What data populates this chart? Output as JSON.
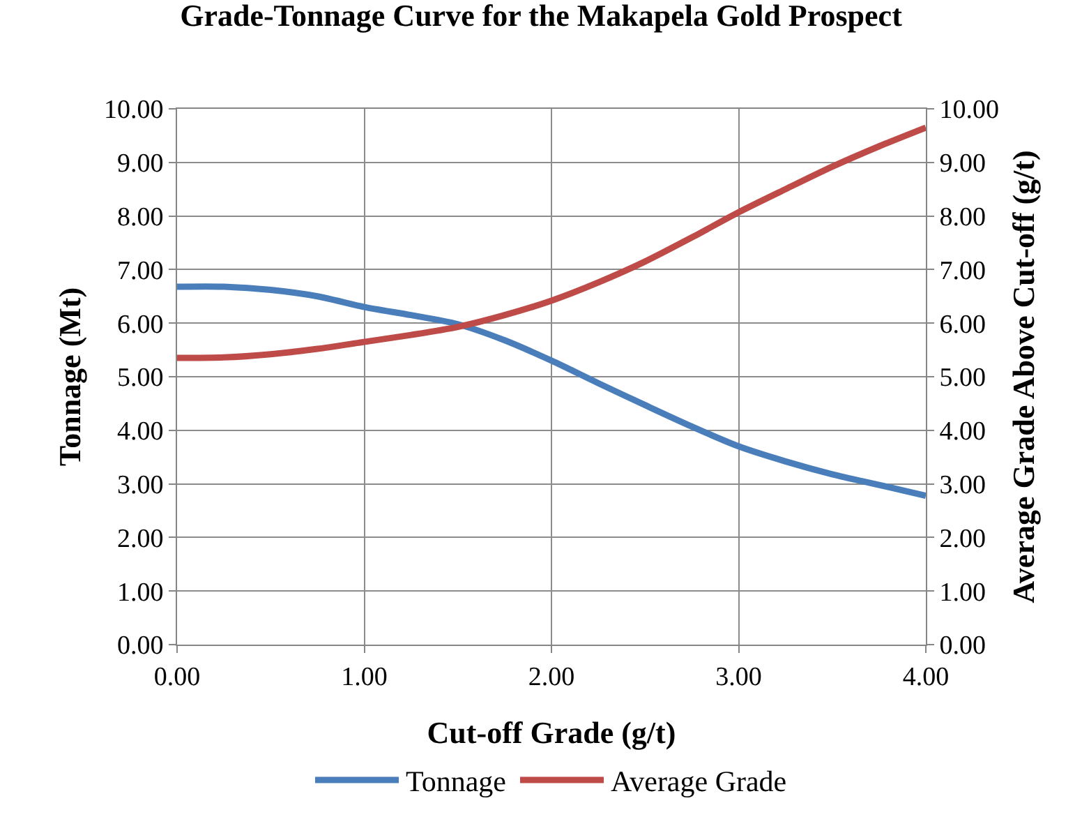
{
  "chart_data": {
    "type": "line",
    "title": "Grade-Tonnage Curve for the Makapela Gold Prospect",
    "xlabel": "Cut-off Grade (g/t)",
    "ylabel": "Tonnage (Mt)",
    "y2label": "Average Grade Above Cut-off (g/t)",
    "x": [
      0,
      0.25,
      0.5,
      0.75,
      1.0,
      1.25,
      1.5,
      1.75,
      2.0,
      2.25,
      2.5,
      2.75,
      3.0,
      3.25,
      3.5,
      3.75,
      4.0
    ],
    "series": [
      {
        "name": "Tonnage",
        "color": "#4a7ebb",
        "values": [
          6.68,
          6.68,
          6.62,
          6.5,
          6.3,
          6.15,
          5.98,
          5.68,
          5.3,
          4.88,
          4.47,
          4.07,
          3.7,
          3.42,
          3.18,
          2.98,
          2.78
        ]
      },
      {
        "name": "Average Grade",
        "color": "#be4b48",
        "axis": "y2",
        "values": [
          5.35,
          5.36,
          5.42,
          5.52,
          5.65,
          5.78,
          5.93,
          6.15,
          6.42,
          6.76,
          7.15,
          7.6,
          8.07,
          8.5,
          8.92,
          9.3,
          9.65
        ]
      }
    ],
    "xlim": [
      0,
      4
    ],
    "xticks": [
      {
        "value": 0,
        "label": "0.00"
      },
      {
        "value": 1,
        "label": "1.00"
      },
      {
        "value": 2,
        "label": "2.00"
      },
      {
        "value": 3,
        "label": "3.00"
      },
      {
        "value": 4,
        "label": "4.00"
      }
    ],
    "ylim": [
      0,
      10
    ],
    "yticks": [
      {
        "value": 0,
        "label": "0.00"
      },
      {
        "value": 1,
        "label": "1.00"
      },
      {
        "value": 2,
        "label": "2.00"
      },
      {
        "value": 3,
        "label": "3.00"
      },
      {
        "value": 4,
        "label": "4.00"
      },
      {
        "value": 5,
        "label": "5.00"
      },
      {
        "value": 6,
        "label": "6.00"
      },
      {
        "value": 7,
        "label": "7.00"
      },
      {
        "value": 8,
        "label": "8.00"
      },
      {
        "value": 9,
        "label": "9.00"
      },
      {
        "value": 10,
        "label": "10.00"
      }
    ],
    "y2lim": [
      0,
      10
    ],
    "y2ticks": [
      {
        "value": 0,
        "label": "0.00"
      },
      {
        "value": 1,
        "label": "1.00"
      },
      {
        "value": 2,
        "label": "2.00"
      },
      {
        "value": 3,
        "label": "3.00"
      },
      {
        "value": 4,
        "label": "4.00"
      },
      {
        "value": 5,
        "label": "5.00"
      },
      {
        "value": 6,
        "label": "6.00"
      },
      {
        "value": 7,
        "label": "7.00"
      },
      {
        "value": 8,
        "label": "8.00"
      },
      {
        "value": 9,
        "label": "9.00"
      },
      {
        "value": 10,
        "label": "10.00"
      }
    ],
    "grid": true,
    "legend": "bottom",
    "marker": "none",
    "line_style": "solid"
  }
}
